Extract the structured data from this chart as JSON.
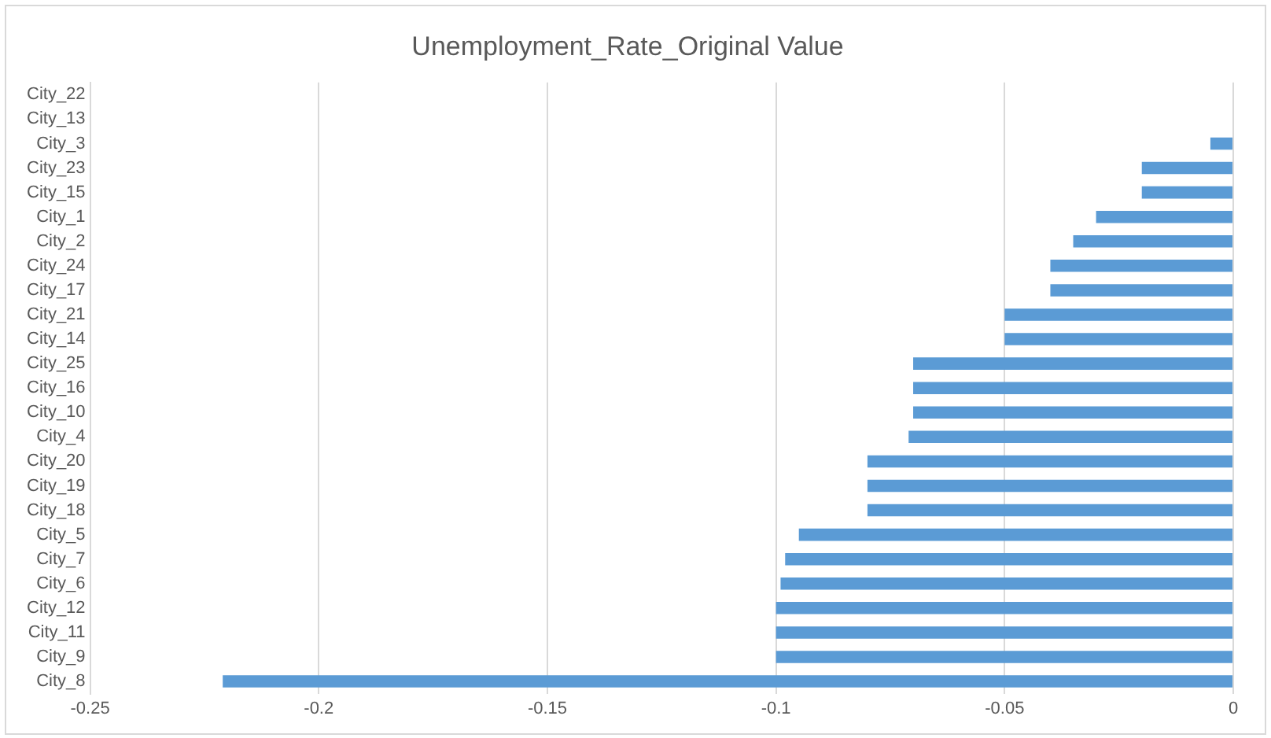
{
  "chart_data": {
    "type": "bar",
    "orientation": "horizontal",
    "title": "Unemployment_Rate_Original Value",
    "categories": [
      "City_22",
      "City_13",
      "City_3",
      "City_23",
      "City_15",
      "City_1",
      "City_2",
      "City_24",
      "City_17",
      "City_21",
      "City_14",
      "City_25",
      "City_16",
      "City_10",
      "City_4",
      "City_20",
      "City_19",
      "City_18",
      "City_5",
      "City_7",
      "City_6",
      "City_12",
      "City_11",
      "City_9",
      "City_8"
    ],
    "values": [
      0,
      0,
      -0.005,
      -0.02,
      -0.02,
      -0.03,
      -0.035,
      -0.04,
      -0.04,
      -0.05,
      -0.05,
      -0.07,
      -0.07,
      -0.07,
      -0.071,
      -0.08,
      -0.08,
      -0.08,
      -0.095,
      -0.098,
      -0.099,
      -0.1,
      -0.1,
      -0.1,
      -0.221
    ],
    "color": "#5b9bd5",
    "xlim": [
      -0.25,
      0
    ],
    "xticks": [
      -0.25,
      -0.2,
      -0.15,
      -0.1,
      -0.05,
      0
    ],
    "grid": "x",
    "legend": false
  }
}
